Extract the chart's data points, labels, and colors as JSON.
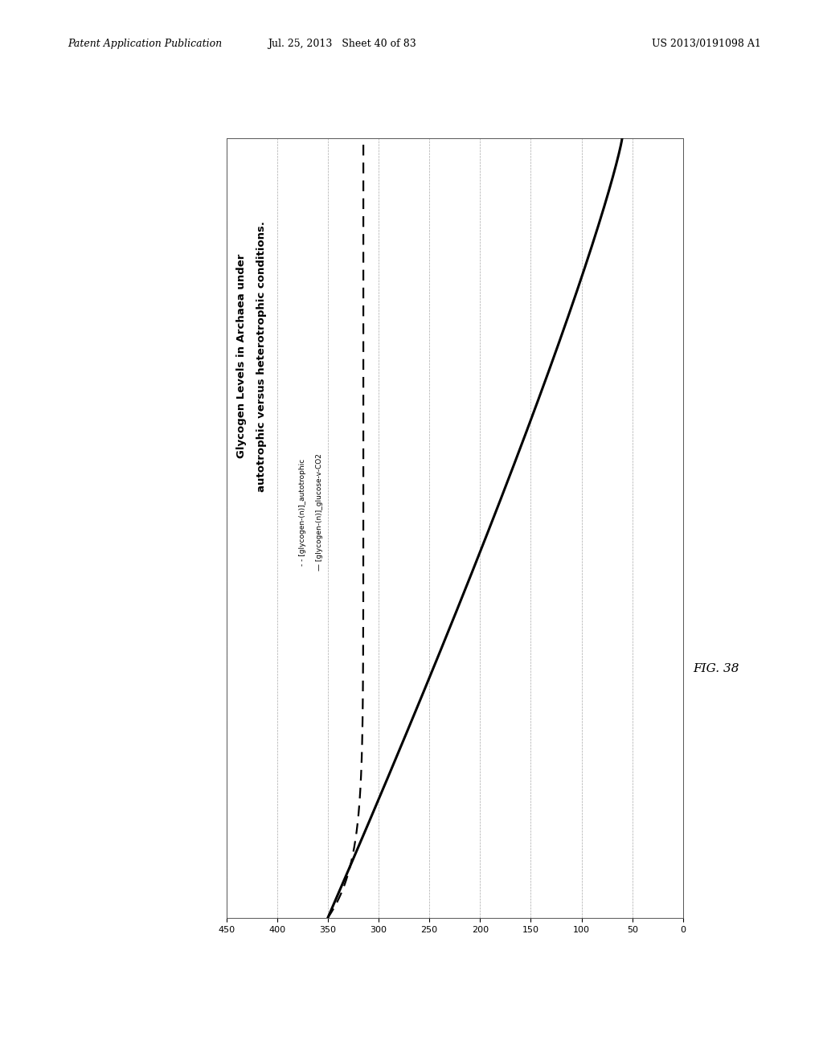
{
  "title_line1": "Glycogen Levels in Archaea under",
  "title_line2": "autotrophic versus heterotrophic conditions.",
  "legend_label_dashed": "- - [glycogen-(n)]_autotrophic",
  "legend_label_solid": "— [glycogen-(n)]_glucose-v-CO2",
  "fig_label": "FIG. 38",
  "header_left": "Patent Application Publication",
  "header_mid": "Jul. 25, 2013   Sheet 40 of 83",
  "header_right": "US 2013/0191098 A1",
  "xtick_labels": [
    "450",
    "400",
    "350",
    "300",
    "250",
    "200",
    "150",
    "100",
    "50",
    "0"
  ],
  "xtick_values": [
    450,
    400,
    350,
    300,
    250,
    200,
    150,
    100,
    50,
    0
  ],
  "plot_bg": "#ffffff",
  "line_color": "#000000",
  "grid_color": "#aaaaaa",
  "outer_bg": "#ffffff",
  "n_steps": 500
}
